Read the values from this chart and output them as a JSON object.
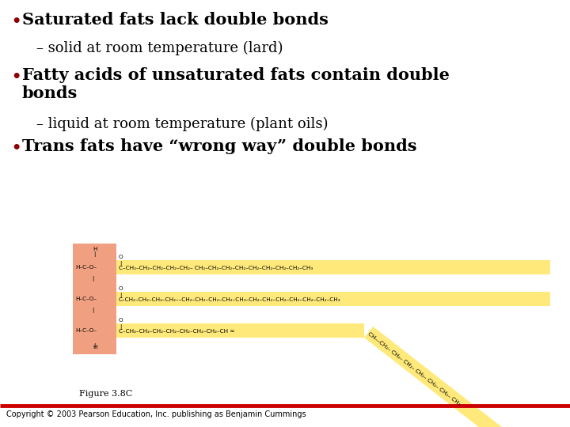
{
  "bg_color": "#ffffff",
  "bullet_color": "#8b0000",
  "text_color": "#000000",
  "sub_color": "#000000",
  "bullet1": "Saturated fats lack double bonds",
  "sub1": "– solid at room temperature (lard)",
  "bullet2": "Fatty acids of unsaturated fats contain double\nbonds",
  "sub2": "– liquid at room temperature (plant oils)",
  "bullet3": "Trans fats have “wrong way” double bonds",
  "figure_label": "Figure 3.8C",
  "copyright": "Copyright © 2003 Pearson Education, Inc. publishing as Benjamin Cummings",
  "glycerol_bg": "#f0a080",
  "chain_bg": "#ffe97a",
  "line_color": "#cc0000",
  "bullet_dot_color": "#8b0000"
}
